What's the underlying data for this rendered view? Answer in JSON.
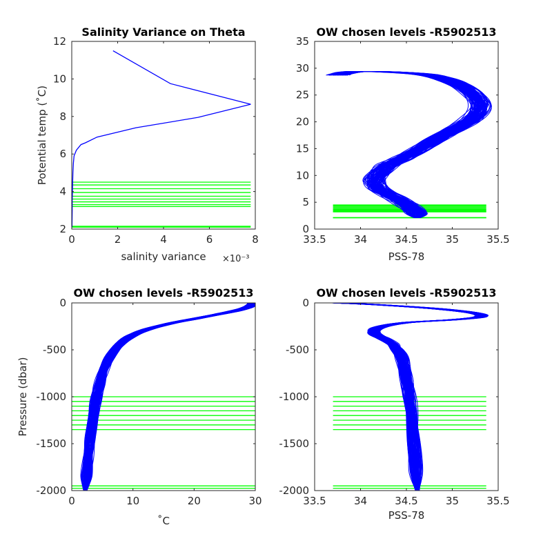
{
  "colors": {
    "profile": "#0000ff",
    "levels": "#00ff00",
    "axis": "#262626"
  },
  "chart_data": [
    {
      "id": "variance",
      "type": "line",
      "title": "Salinity Variance on Theta",
      "xlabel": "salinity variance",
      "x_exponent_label": "×10⁻³",
      "ylabel": "Potential temp (˚C)",
      "xlim": [
        0,
        0.008
      ],
      "ylim": [
        2,
        12
      ],
      "xticks": [
        0,
        0.002,
        0.004,
        0.006,
        0.008
      ],
      "xtick_labels": [
        "0",
        "2",
        "4",
        "6",
        "8"
      ],
      "yticks": [
        2,
        4,
        6,
        8,
        10,
        12
      ],
      "ytick_labels": [
        "2",
        "4",
        "6",
        "8",
        "10",
        "12"
      ],
      "series": [
        {
          "x": [
            0.0018,
            0.0043,
            0.0078,
            0.0055,
            0.0028,
            0.0011,
            0.0006,
            0.0004,
            0.0002,
            0.0001,
            7e-05,
            5e-05,
            4e-05,
            3e-05,
            2e-05,
            2e-05,
            1e-05
          ],
          "y": [
            11.5,
            9.75,
            8.65,
            7.95,
            7.4,
            6.9,
            6.6,
            6.5,
            6.2,
            5.9,
            5.5,
            5.0,
            4.5,
            4.0,
            3.5,
            3.0,
            2.1
          ]
        }
      ],
      "chosen_levels": [
        4.5,
        4.35,
        4.15,
        3.95,
        3.75,
        3.6,
        3.45,
        3.3,
        3.2,
        2.15,
        2.1
      ],
      "level_xlim": [
        0,
        0.0078
      ]
    },
    {
      "id": "theta_salinity",
      "type": "line",
      "title": "OW chosen levels -R5902513",
      "xlabel": "PSS-78",
      "ylabel": "",
      "xlim": [
        33.5,
        35.5
      ],
      "ylim": [
        0,
        35
      ],
      "xticks": [
        33.5,
        34,
        34.5,
        35,
        35.5
      ],
      "xtick_labels": [
        "33.5",
        "34",
        "34.5",
        "35",
        "35.5"
      ],
      "yticks": [
        0,
        5,
        10,
        15,
        20,
        25,
        30,
        35
      ],
      "ytick_labels": [
        "0",
        "5",
        "10",
        "15",
        "20",
        "25",
        "30",
        "35"
      ],
      "profile": {
        "x": [
          33.75,
          33.85,
          34.0,
          34.3,
          34.7,
          35.0,
          35.2,
          35.3,
          35.2,
          35.0,
          34.8,
          34.6,
          34.45,
          34.3,
          34.2,
          34.15,
          34.2,
          34.35,
          34.5,
          34.6,
          34.62
        ],
        "y": [
          28.7,
          29.2,
          29.4,
          29.3,
          28.8,
          27.5,
          25.5,
          23.0,
          20.5,
          18.5,
          16.5,
          14.5,
          13.2,
          12.0,
          10.5,
          9.0,
          7.5,
          6.0,
          4.5,
          3.0,
          2.1
        ]
      },
      "profile_count": 90,
      "profile_spread": 0.09,
      "chosen_levels": [
        4.5,
        4.35,
        4.15,
        3.95,
        3.75,
        3.6,
        3.45,
        3.3,
        3.2,
        2.15,
        2.1
      ],
      "level_xlim": [
        33.7,
        35.37
      ]
    },
    {
      "id": "pressure_theta",
      "type": "line",
      "title": "OW chosen levels -R5902513",
      "xlabel": "˚C",
      "ylabel": "Pressure (dbar)",
      "xlim": [
        0,
        30
      ],
      "ylim": [
        -2000,
        0
      ],
      "xticks": [
        0,
        10,
        20,
        30
      ],
      "xtick_labels": [
        "0",
        "10",
        "20",
        "30"
      ],
      "yticks": [
        -2000,
        -1500,
        -1000,
        -500,
        0
      ],
      "ytick_labels": [
        "-2000",
        "-1500",
        "-1000",
        "-500",
        "0"
      ],
      "profile": {
        "x": [
          29.5,
          29,
          27,
          24,
          20,
          16,
          12,
          9.5,
          7.5,
          6.2,
          5.2,
          4.5,
          3.9,
          3.4,
          3.0,
          2.7,
          2.4,
          2.2
        ],
        "y": [
          0,
          -40,
          -80,
          -120,
          -170,
          -220,
          -290,
          -360,
          -460,
          -580,
          -720,
          -880,
          -1050,
          -1250,
          -1450,
          -1650,
          -1850,
          -2000
        ]
      },
      "profile_count": 90,
      "profile_spread": 0.6,
      "chosen_levels": [
        -1000,
        -1050,
        -1100,
        -1150,
        -1200,
        -1250,
        -1300,
        -1350,
        -1950,
        -1975
      ],
      "level_xlim": [
        0,
        30
      ]
    },
    {
      "id": "pressure_salinity",
      "type": "line",
      "title": "OW chosen levels -R5902513",
      "xlabel": "PSS-78",
      "ylabel": "",
      "xlim": [
        33.5,
        35.5
      ],
      "ylim": [
        -2000,
        0
      ],
      "xticks": [
        33.5,
        34,
        34.5,
        35,
        35.5
      ],
      "xtick_labels": [
        "33.5",
        "34",
        "34.5",
        "35",
        "35.5"
      ],
      "yticks": [
        -2000,
        -1500,
        -1000,
        -500,
        0
      ],
      "ytick_labels": [
        "-2000",
        "-1500",
        "-1000",
        "-500",
        "0"
      ],
      "profile": {
        "x": [
          33.75,
          34.2,
          34.8,
          35.25,
          35.3,
          35.0,
          34.5,
          34.2,
          34.15,
          34.25,
          34.35,
          34.4,
          34.45,
          34.5,
          34.53,
          34.56,
          34.58,
          34.6,
          34.62
        ],
        "y": [
          0,
          -20,
          -60,
          -110,
          -150,
          -180,
          -210,
          -260,
          -320,
          -380,
          -440,
          -500,
          -600,
          -800,
          -1000,
          -1200,
          -1500,
          -1800,
          -2000
        ]
      },
      "profile_count": 90,
      "profile_spread": 0.05,
      "chosen_levels": [
        -1000,
        -1050,
        -1100,
        -1150,
        -1200,
        -1250,
        -1300,
        -1350,
        -1950,
        -1975
      ],
      "level_xlim": [
        33.7,
        35.37
      ]
    }
  ]
}
